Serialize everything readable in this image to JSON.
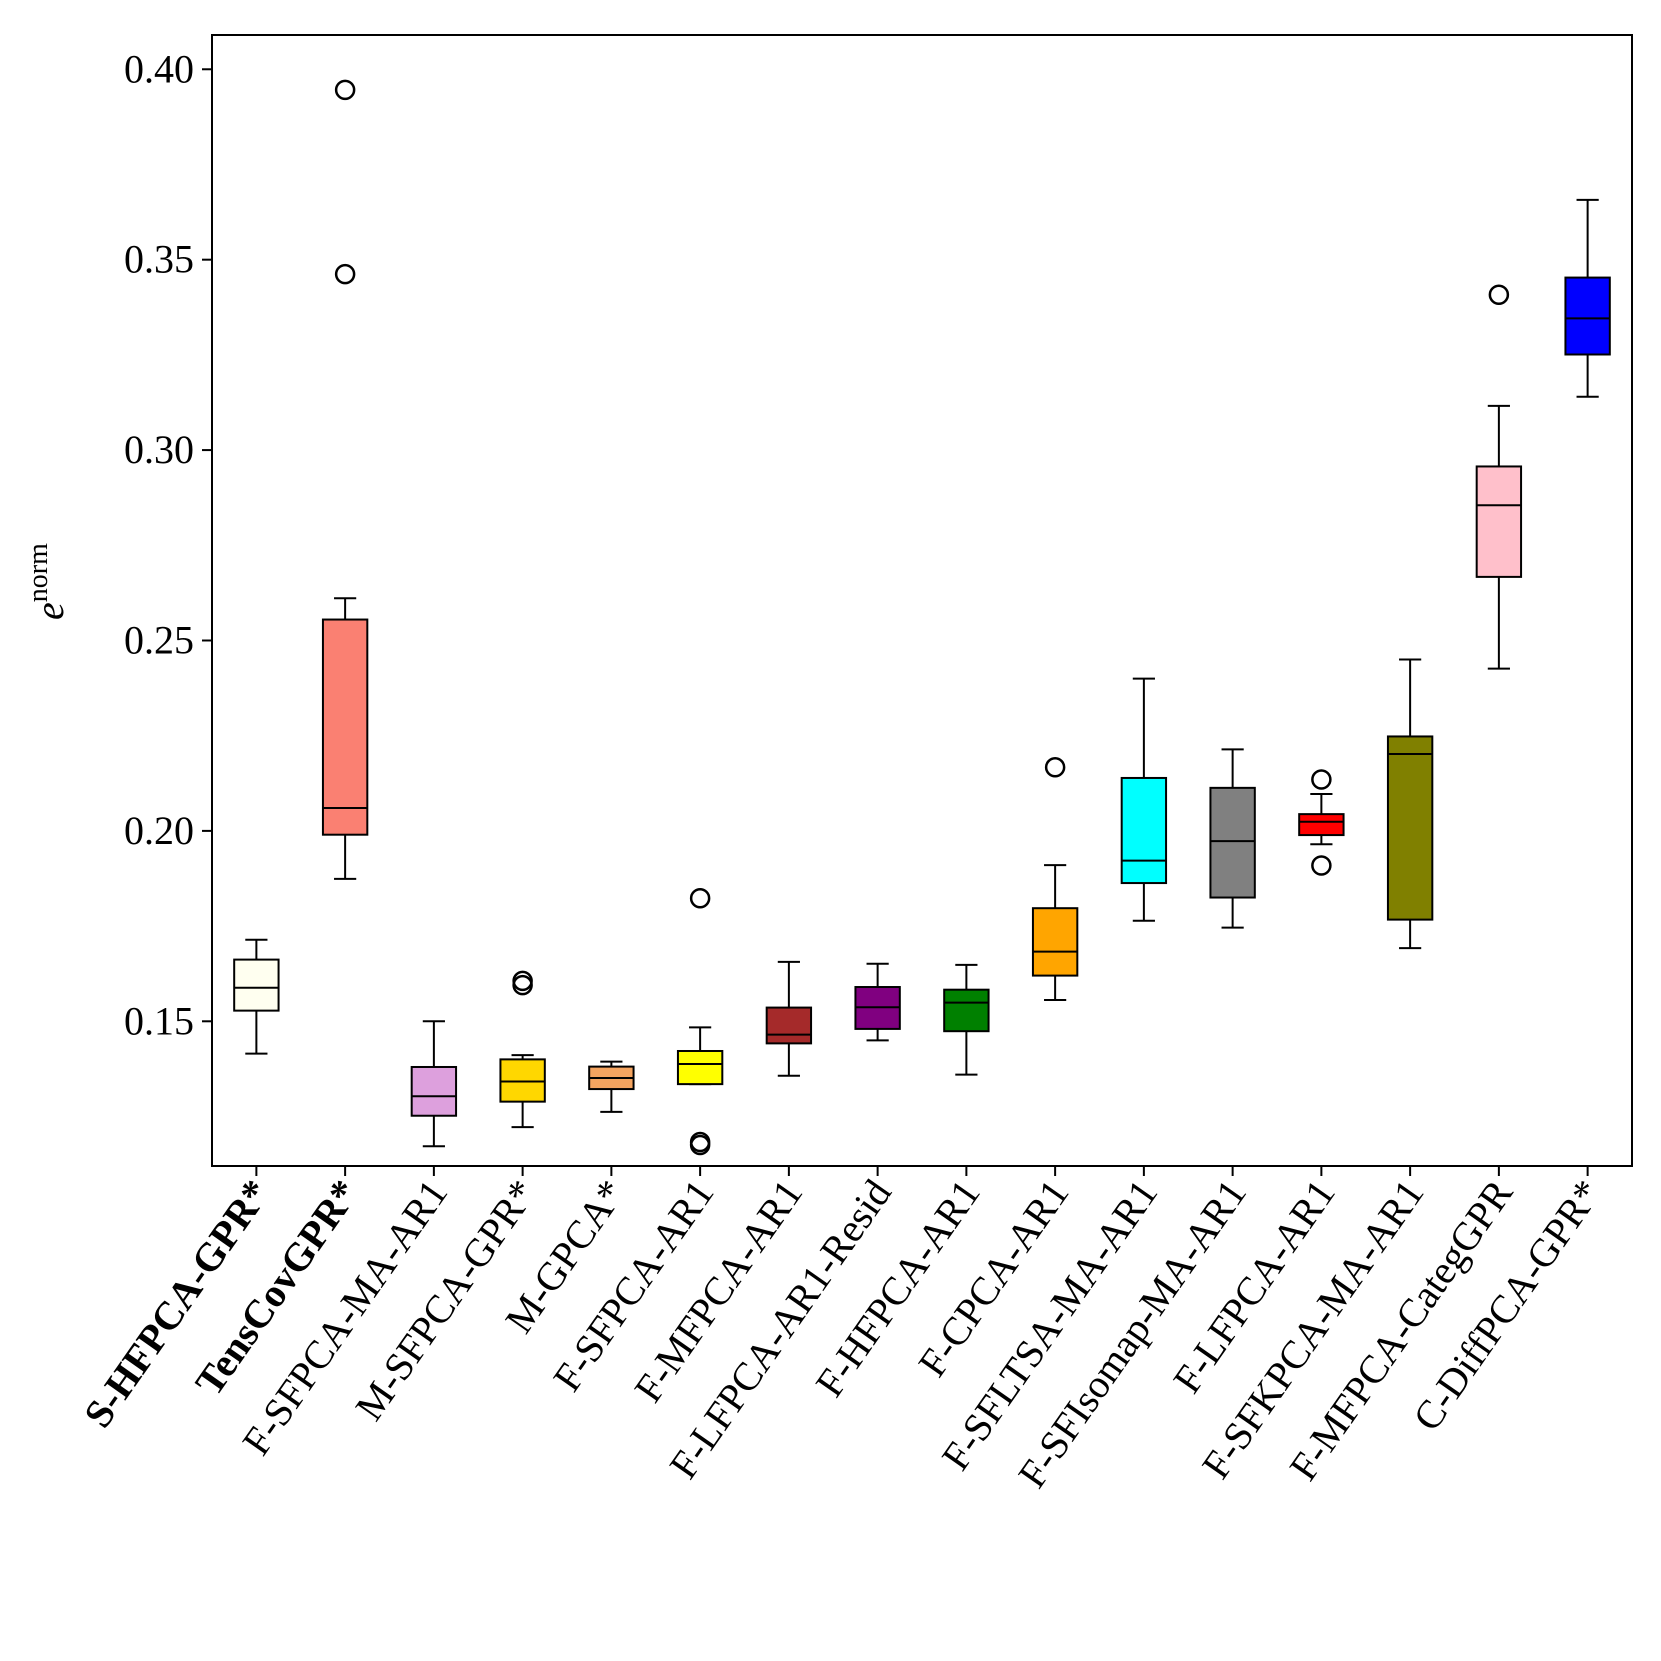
{
  "chart_data": {
    "type": "boxplot",
    "ylabel": {
      "base": "e",
      "superscript": "norm"
    },
    "ylim": [
      0.112,
      0.409
    ],
    "yticks": [
      0.15,
      0.2,
      0.25,
      0.3,
      0.35,
      0.4
    ],
    "ytick_labels": [
      "0.15",
      "0.20",
      "0.25",
      "0.30",
      "0.35",
      "0.40"
    ],
    "grid": false,
    "legend": "none",
    "boxes": [
      {
        "label": "S-HFPCA-GPR*",
        "bold": true,
        "color": "#fffff0",
        "whislo": 0.1415,
        "q1": 0.1528,
        "med": 0.1588,
        "q3": 0.1662,
        "whishi": 0.1714,
        "fliers": []
      },
      {
        "label": "TensCovGPR*",
        "bold": true,
        "color": "#fa8072",
        "whislo": 0.1874,
        "q1": 0.199,
        "med": 0.206,
        "q3": 0.2555,
        "whishi": 0.2611,
        "fliers": [
          0.3946,
          0.3462
        ]
      },
      {
        "label": "F-SFPCA-MA-AR1",
        "bold": false,
        "color": "#dda0dd",
        "whislo": 0.1172,
        "q1": 0.1252,
        "med": 0.1303,
        "q3": 0.138,
        "whishi": 0.15,
        "fliers": []
      },
      {
        "label": "M-SFPCA-GPR*",
        "bold": false,
        "color": "#ffd700",
        "whislo": 0.1222,
        "q1": 0.1289,
        "med": 0.1342,
        "q3": 0.14,
        "whishi": 0.1411,
        "fliers": [
          0.1606,
          0.1595
        ]
      },
      {
        "label": "M-GPCA*",
        "bold": false,
        "color": "#f4a460",
        "whislo": 0.1262,
        "q1": 0.1322,
        "med": 0.1351,
        "q3": 0.1381,
        "whishi": 0.1394,
        "fliers": []
      },
      {
        "label": "F-SFPCA-AR1",
        "bold": false,
        "color": "#ffff00",
        "whislo": 0.1335,
        "q1": 0.1335,
        "med": 0.1388,
        "q3": 0.1422,
        "whishi": 0.1484,
        "fliers": [
          0.1823,
          0.1183,
          0.1175
        ]
      },
      {
        "label": "F-MFPCA-AR1",
        "bold": false,
        "color": "#a52a2a",
        "whislo": 0.1357,
        "q1": 0.1442,
        "med": 0.1465,
        "q3": 0.1536,
        "whishi": 0.1656,
        "fliers": []
      },
      {
        "label": "F-LFPCA-AR1-Resid",
        "bold": false,
        "color": "#800080",
        "whislo": 0.145,
        "q1": 0.148,
        "med": 0.1537,
        "q3": 0.159,
        "whishi": 0.1651,
        "fliers": []
      },
      {
        "label": "F-HFPCA-AR1",
        "bold": false,
        "color": "#008000",
        "whislo": 0.136,
        "q1": 0.1474,
        "med": 0.1549,
        "q3": 0.1583,
        "whishi": 0.1648,
        "fliers": []
      },
      {
        "label": "F-CPCA-AR1",
        "bold": false,
        "color": "#ffa500",
        "whislo": 0.1556,
        "q1": 0.162,
        "med": 0.1683,
        "q3": 0.1797,
        "whishi": 0.191,
        "fliers": [
          0.2167
        ]
      },
      {
        "label": "F-SFLTSA-MA-AR1",
        "bold": false,
        "color": "#00ffff",
        "whislo": 0.1764,
        "q1": 0.1863,
        "med": 0.1922,
        "q3": 0.2139,
        "whishi": 0.24,
        "fliers": []
      },
      {
        "label": "F-SFIsomap-MA-AR1",
        "bold": false,
        "color": "#808080",
        "whislo": 0.1746,
        "q1": 0.1825,
        "med": 0.1973,
        "q3": 0.2113,
        "whishi": 0.2214,
        "fliers": []
      },
      {
        "label": "F-LFPCA-AR1",
        "bold": false,
        "color": "#ff0000",
        "whislo": 0.1965,
        "q1": 0.1989,
        "med": 0.2024,
        "q3": 0.2044,
        "whishi": 0.2097,
        "fliers": [
          0.2135,
          0.1909
        ]
      },
      {
        "label": "F-SFKPCA-MA-AR1",
        "bold": false,
        "color": "#808000",
        "whislo": 0.1692,
        "q1": 0.1767,
        "med": 0.2202,
        "q3": 0.2248,
        "whishi": 0.245,
        "fliers": []
      },
      {
        "label": "F-MFPCA-CategGPR",
        "bold": false,
        "color": "#ffc0cb",
        "whislo": 0.2426,
        "q1": 0.2667,
        "med": 0.2855,
        "q3": 0.2957,
        "whishi": 0.3116,
        "fliers": [
          0.3408
        ]
      },
      {
        "label": "C-DiffPCA-GPR*",
        "bold": false,
        "color": "#0000ff",
        "whislo": 0.314,
        "q1": 0.3251,
        "med": 0.3346,
        "q3": 0.3453,
        "whishi": 0.3657,
        "fliers": []
      }
    ]
  }
}
